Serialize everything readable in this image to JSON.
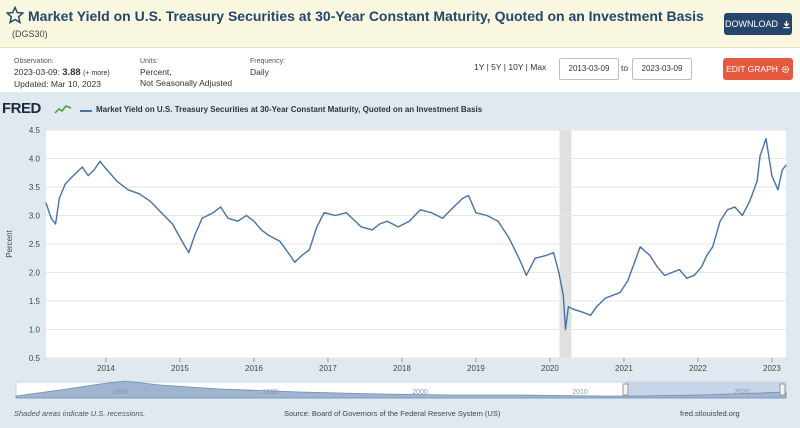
{
  "header": {
    "title": "Market Yield on U.S. Treasury Securities at 30-Year Constant Maturity, Quoted on an Investment Basis",
    "series_id": "(DGS30)",
    "download_label": "DOWNLOAD"
  },
  "meta": {
    "observation_label": "Observation:",
    "observation_date": "2023-03-09:",
    "observation_value": "3.88",
    "observation_note": "(+ more)",
    "updated": "Updated: Mar 10, 2023",
    "units_label": "Units:",
    "units_line1": "Percent,",
    "units_line2": "Not Seasonally Adjusted",
    "frequency_label": "Frequency:",
    "frequency_value": "Daily"
  },
  "controls": {
    "range_links": "1Y | 5Y | 10Y | Max",
    "start_date": "2013-03-09",
    "to_label": "to",
    "end_date": "2023-03-09",
    "edit_label": "EDIT GRAPH"
  },
  "legend": {
    "logo": "FRED",
    "series_label": "Market Yield on U.S. Treasury Securities at 30-Year Constant Maturity, Quoted on an Investment Basis"
  },
  "footer": {
    "recession_note": "Shaded areas indicate U.S. recessions.",
    "source": "Source: Board of Governors of the Federal Reserve System (US)",
    "site": "fred.stlouisfed.org"
  },
  "colors": {
    "line": "#4572a7",
    "plot_bg": "#ffffff",
    "panel_bg": "#e1e9f0",
    "recession": "#e0e0e0",
    "accent_button": "#e5593e",
    "download_button": "#25466b"
  },
  "chart_data": {
    "type": "line",
    "title": "Market Yield on U.S. Treasury Securities at 30-Year Constant Maturity, Quoted on an Investment Basis",
    "xlabel": "",
    "ylabel": "Percent",
    "xlim": [
      2013.19,
      2023.19
    ],
    "ylim": [
      0.5,
      4.5
    ],
    "yticks": [
      "0.5",
      "1.0",
      "1.5",
      "2.0",
      "2.5",
      "3.0",
      "3.5",
      "4.0",
      "4.5"
    ],
    "xticks": [
      "2014",
      "2015",
      "2016",
      "2017",
      "2018",
      "2019",
      "2020",
      "2021",
      "2022",
      "2023"
    ],
    "grid": "horizontal",
    "recessions": [
      [
        2020.13,
        2020.29
      ]
    ],
    "navigator_labels": [
      "1980",
      "1990",
      "2000",
      "2010",
      "2020"
    ],
    "series": [
      {
        "name": "Market Yield on U.S. Treasury Securities at 30-Year Constant Maturity, Quoted on an Investment Basis",
        "x": [
          2013.19,
          2013.26,
          2013.32,
          2013.37,
          2013.45,
          2013.52,
          2013.6,
          2013.68,
          2013.76,
          2013.84,
          2013.92,
          2013.98,
          2014.05,
          2014.15,
          2014.3,
          2014.45,
          2014.6,
          2014.75,
          2014.9,
          2015.05,
          2015.12,
          2015.2,
          2015.3,
          2015.45,
          2015.55,
          2015.65,
          2015.78,
          2015.9,
          2016.0,
          2016.1,
          2016.2,
          2016.35,
          2016.5,
          2016.55,
          2016.65,
          2016.75,
          2016.85,
          2016.95,
          2017.1,
          2017.25,
          2017.45,
          2017.6,
          2017.7,
          2017.8,
          2017.95,
          2018.1,
          2018.25,
          2018.4,
          2018.55,
          2018.7,
          2018.82,
          2018.9,
          2019.0,
          2019.15,
          2019.3,
          2019.45,
          2019.6,
          2019.68,
          2019.8,
          2019.95,
          2020.05,
          2020.12,
          2020.18,
          2020.21,
          2020.25,
          2020.33,
          2020.45,
          2020.55,
          2020.63,
          2020.75,
          2020.85,
          2020.95,
          2021.05,
          2021.15,
          2021.22,
          2021.35,
          2021.45,
          2021.55,
          2021.65,
          2021.75,
          2021.85,
          2021.95,
          2022.05,
          2022.12,
          2022.2,
          2022.3,
          2022.4,
          2022.5,
          2022.6,
          2022.7,
          2022.8,
          2022.84,
          2022.92,
          2023.0,
          2023.08,
          2023.14,
          2023.19
        ],
        "values": [
          3.22,
          2.95,
          2.85,
          3.3,
          3.55,
          3.65,
          3.75,
          3.85,
          3.7,
          3.8,
          3.95,
          3.85,
          3.75,
          3.6,
          3.45,
          3.38,
          3.25,
          3.05,
          2.85,
          2.5,
          2.35,
          2.65,
          2.95,
          3.05,
          3.15,
          2.95,
          2.9,
          3.0,
          2.9,
          2.75,
          2.65,
          2.55,
          2.28,
          2.18,
          2.3,
          2.4,
          2.8,
          3.05,
          3.0,
          3.05,
          2.8,
          2.75,
          2.85,
          2.9,
          2.8,
          2.9,
          3.1,
          3.05,
          2.95,
          3.15,
          3.3,
          3.35,
          3.05,
          3.0,
          2.9,
          2.6,
          2.2,
          1.95,
          2.25,
          2.3,
          2.35,
          2.0,
          1.6,
          1.0,
          1.4,
          1.35,
          1.3,
          1.25,
          1.4,
          1.55,
          1.6,
          1.65,
          1.85,
          2.2,
          2.45,
          2.3,
          2.1,
          1.95,
          2.0,
          2.05,
          1.9,
          1.95,
          2.1,
          2.3,
          2.45,
          2.9,
          3.1,
          3.15,
          3.0,
          3.25,
          3.6,
          4.05,
          4.35,
          3.7,
          3.45,
          3.8,
          3.88
        ]
      }
    ]
  }
}
